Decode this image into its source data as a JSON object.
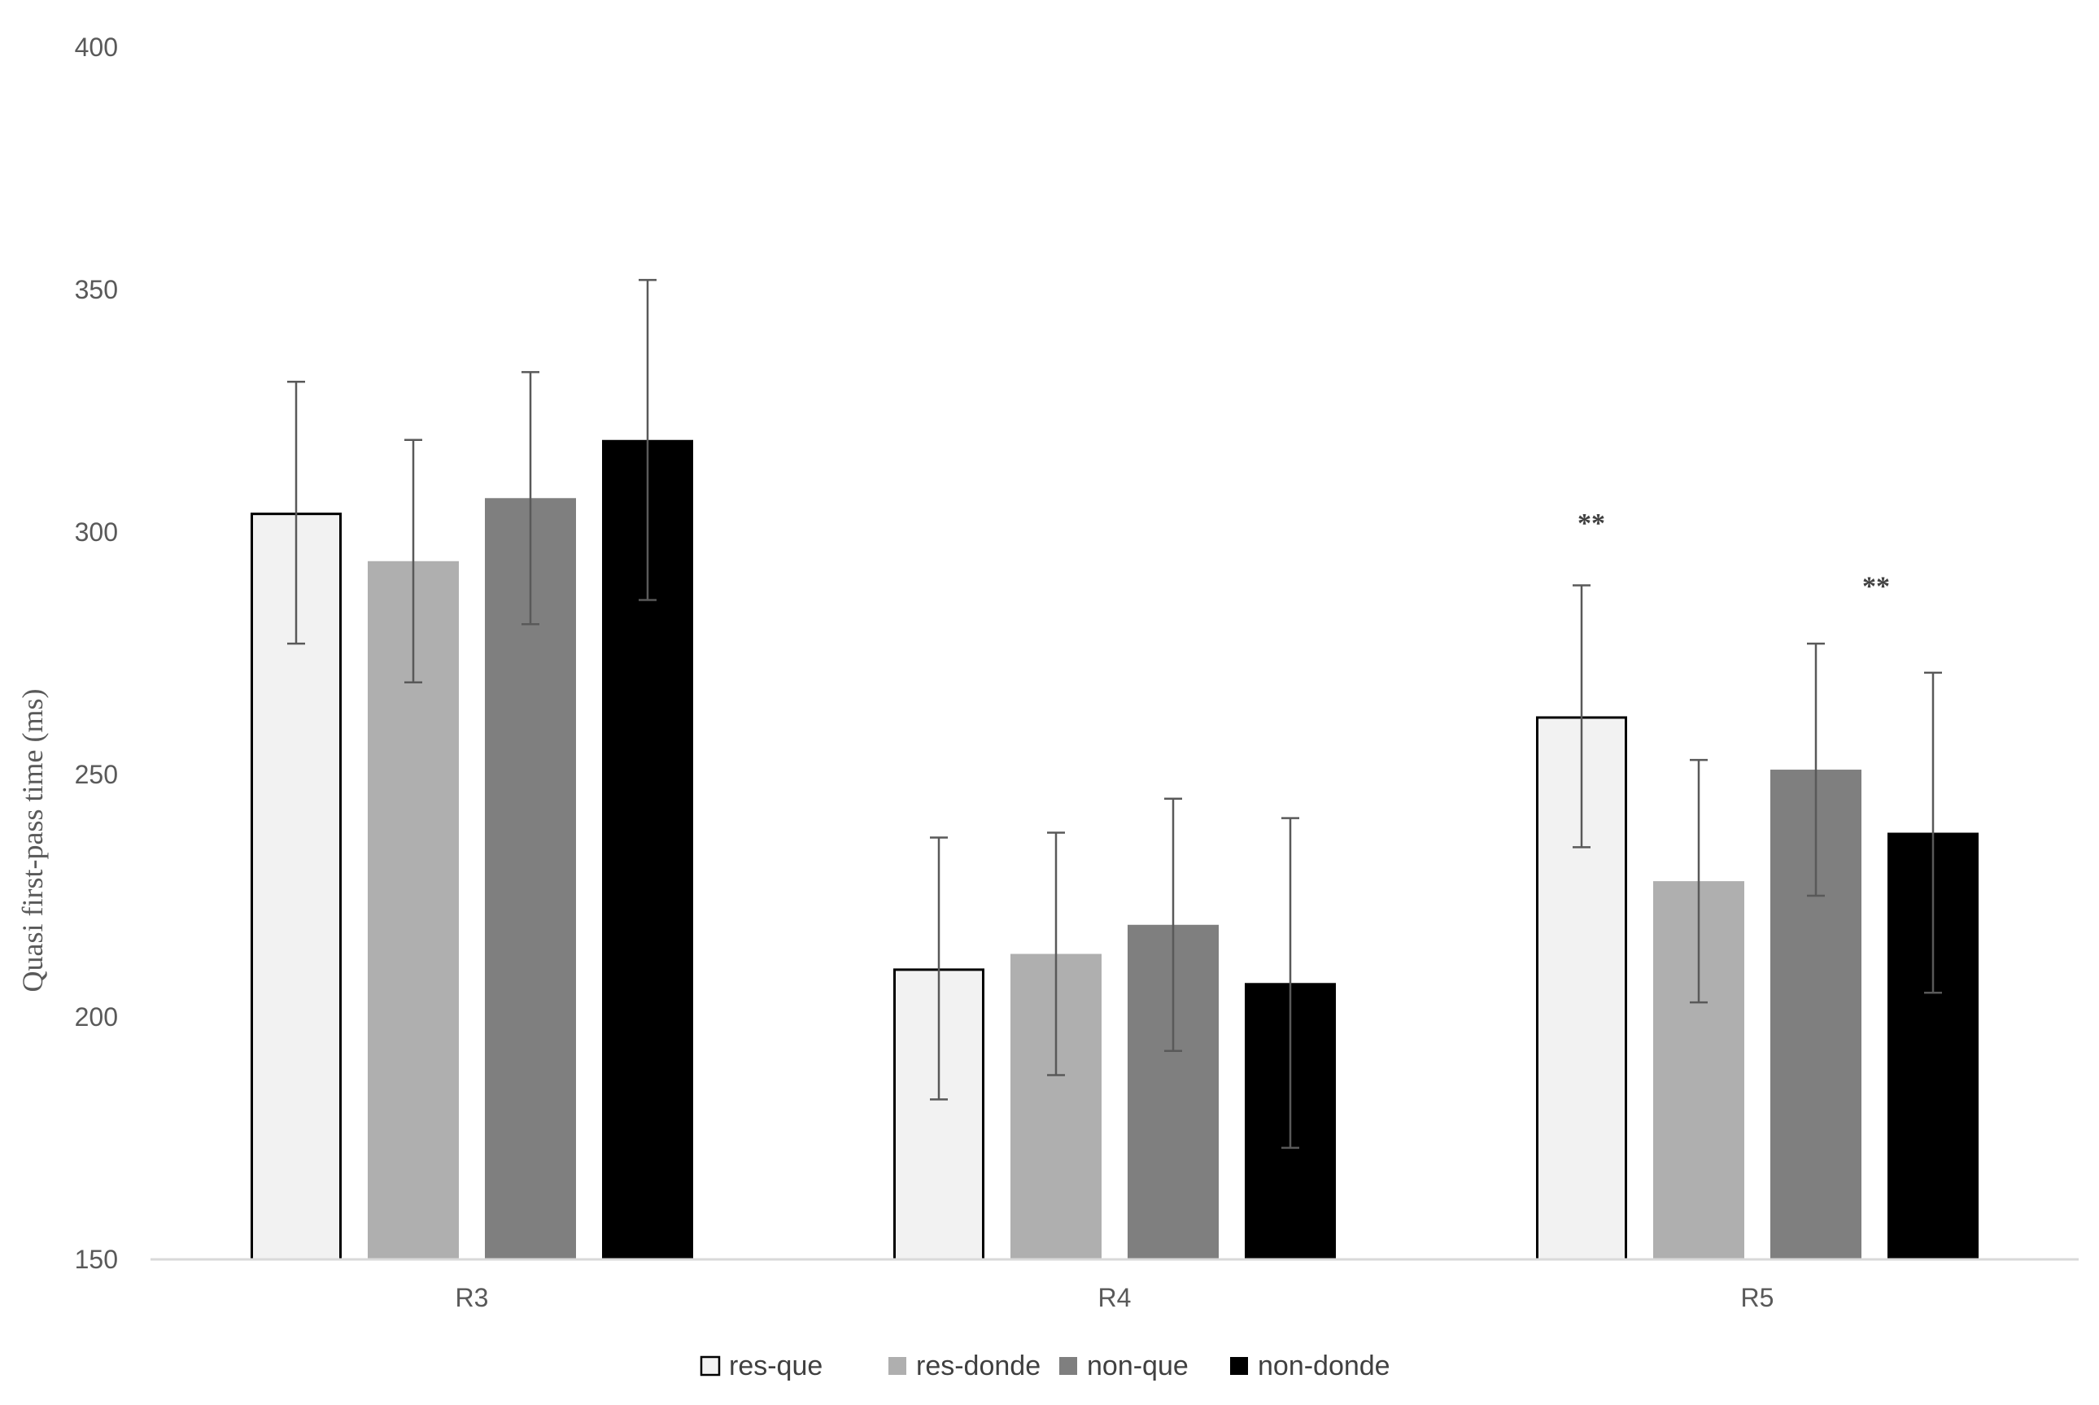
{
  "chart_data": {
    "type": "bar",
    "title": "",
    "xlabel": "",
    "ylabel": "Quasi first-pass time (ms)",
    "ylim": [
      150,
      400
    ],
    "yticks": [
      150,
      200,
      250,
      300,
      350,
      400
    ],
    "grid": false,
    "legend_position": "bottom-center",
    "categories": [
      "R3",
      "R4",
      "R5"
    ],
    "series": [
      {
        "name": "res-que",
        "color": "#f2f2f2",
        "stroke": "#000000",
        "values": [
          304,
          210,
          262
        ],
        "errors": [
          27,
          27,
          27
        ]
      },
      {
        "name": "res-donde",
        "color": "#afafaf",
        "stroke": "none",
        "values": [
          294,
          213,
          228
        ],
        "errors": [
          25,
          25,
          25
        ]
      },
      {
        "name": "non-que",
        "color": "#7f7f7f",
        "stroke": "none",
        "values": [
          307,
          219,
          251
        ],
        "errors": [
          26,
          26,
          26
        ]
      },
      {
        "name": "non-donde",
        "color": "#000000",
        "stroke": "none",
        "values": [
          319,
          207,
          238
        ],
        "errors": [
          33,
          34,
          33
        ]
      }
    ],
    "annotations": [
      {
        "text": "**",
        "category": "R5",
        "series_index": 0,
        "y": 300
      },
      {
        "text": "**",
        "category": "R5",
        "series_index": 3,
        "y": 287
      }
    ]
  }
}
